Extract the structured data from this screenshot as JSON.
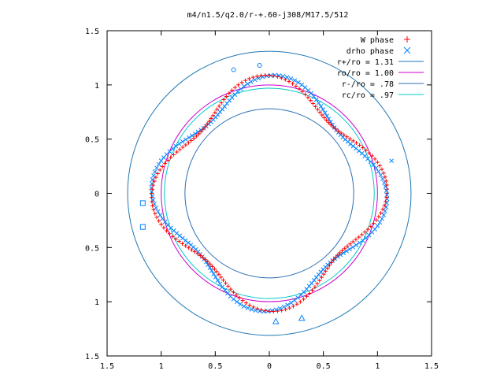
{
  "chart_data": {
    "type": "scatter",
    "title": "m4/n1.5/q2.0/r-+.60-j308/M17.5/512",
    "xlabel": "",
    "ylabel": "",
    "xlim": [
      -1.5,
      1.5
    ],
    "ylim": [
      -1.5,
      1.5
    ],
    "x_ticks": [
      -1.5,
      -1,
      -0.5,
      0,
      0.5,
      1,
      1.5
    ],
    "y_ticks": [
      -1.5,
      -1,
      -0.5,
      0,
      0.5,
      1,
      1.5
    ],
    "x_tick_labels": [
      "1.5",
      "1",
      "0.5",
      "0",
      "0.5",
      "1",
      "1.5"
    ],
    "y_tick_labels": [
      "1.5",
      "1",
      "0.5",
      "0",
      "0.5",
      "1",
      "1.5"
    ],
    "grid": false,
    "legend_position": "top-right",
    "series": [
      {
        "name": "W phase",
        "kind": "points",
        "marker": "plus",
        "color": "#ff0000"
      },
      {
        "name": "drho phase",
        "kind": "points",
        "marker": "cross",
        "color": "#0080ff"
      },
      {
        "name": "r+/ro = 1.31",
        "kind": "circle",
        "r": 1.31,
        "color": "#1f77b4"
      },
      {
        "name": "ro/ro = 1.00",
        "kind": "circle",
        "r": 1.0,
        "color": "#cc00cc"
      },
      {
        "name": "r-/ro = .78",
        "kind": "circle",
        "r": 0.78,
        "color": "#2a6fb5"
      },
      {
        "name": "rc/ro = .97",
        "kind": "circle",
        "r": 0.97,
        "color": "#00c8c8"
      }
    ],
    "lobes": {
      "count": 4,
      "radius": 0.97,
      "angle_offset_deg": 70,
      "width": 0.12,
      "amplitude": 0.12
    },
    "extra_points": [
      {
        "x": -0.33,
        "y": 1.14,
        "marker": "circle"
      },
      {
        "x": -0.09,
        "y": 1.18,
        "marker": "circle"
      },
      {
        "x": 1.13,
        "y": 0.3,
        "marker": "cross"
      },
      {
        "x": -1.17,
        "y": -0.09,
        "marker": "square"
      },
      {
        "x": -1.17,
        "y": -0.31,
        "marker": "square"
      },
      {
        "x": 0.3,
        "y": -1.15,
        "marker": "triangle"
      },
      {
        "x": 0.06,
        "y": -1.18,
        "marker": "triangle"
      }
    ]
  }
}
